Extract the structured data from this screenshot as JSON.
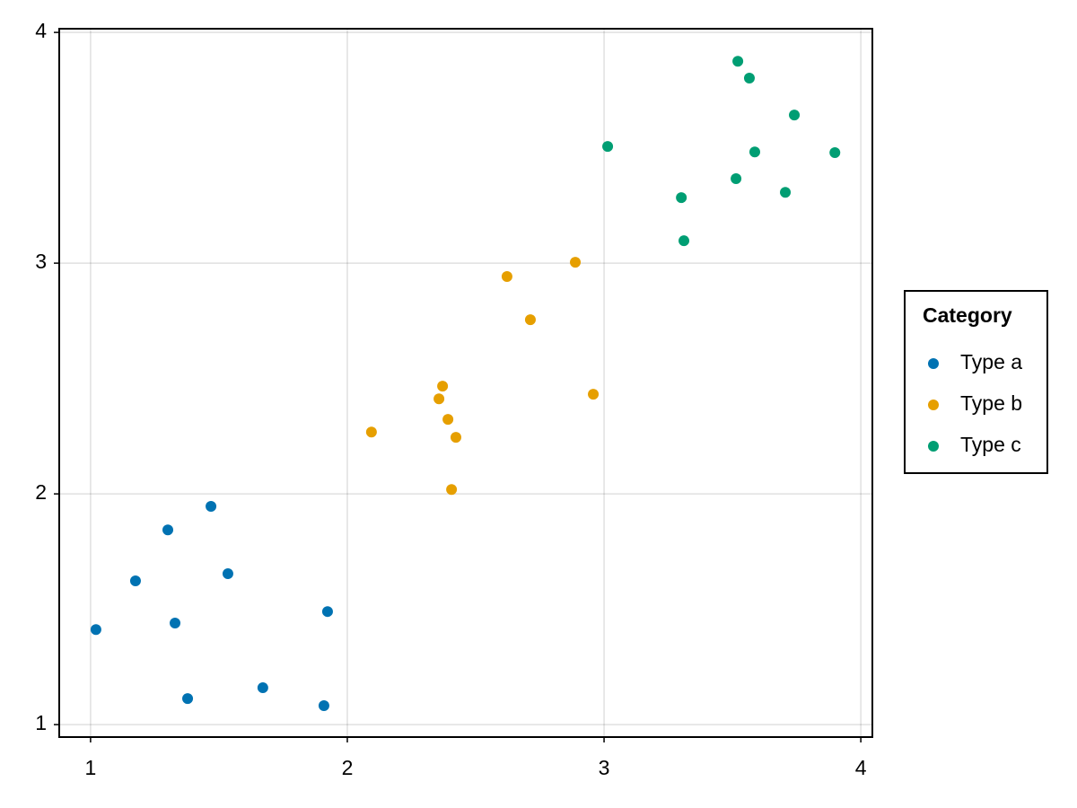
{
  "chart_data": {
    "type": "scatter",
    "series": [
      {
        "name": "Type a",
        "color": "#0072b2",
        "x": [
          1.021,
          1.175,
          1.301,
          1.469,
          1.535,
          1.329,
          1.378,
          1.671,
          1.909,
          1.923
        ],
        "values": [
          1.412,
          1.623,
          1.844,
          1.946,
          1.654,
          1.44,
          1.113,
          1.16,
          1.082,
          1.49
        ]
      },
      {
        "name": "Type b",
        "color": "#e69f00",
        "x": [
          2.094,
          2.371,
          2.357,
          2.392,
          2.423,
          2.406,
          2.622,
          2.713,
          2.888,
          2.958
        ],
        "values": [
          2.268,
          2.467,
          2.412,
          2.323,
          2.245,
          2.019,
          2.942,
          2.755,
          3.004,
          2.432
        ]
      },
      {
        "name": "Type c",
        "color": "#009e73",
        "x": [
          3.014,
          3.301,
          3.311,
          3.521,
          3.566,
          3.741,
          3.587,
          3.514,
          3.706,
          3.899
        ],
        "values": [
          3.506,
          3.284,
          3.097,
          3.875,
          3.802,
          3.642,
          3.482,
          3.366,
          3.307,
          3.479
        ]
      }
    ],
    "xlim": [
      0.878,
      4.045
    ],
    "xticks": [
      1,
      2,
      3,
      4
    ],
    "ylim": [
      0.946,
      4.016
    ],
    "yticks": [
      1,
      2,
      3,
      4
    ],
    "grid": true,
    "legend_title": "Category",
    "legend_position": "right"
  }
}
